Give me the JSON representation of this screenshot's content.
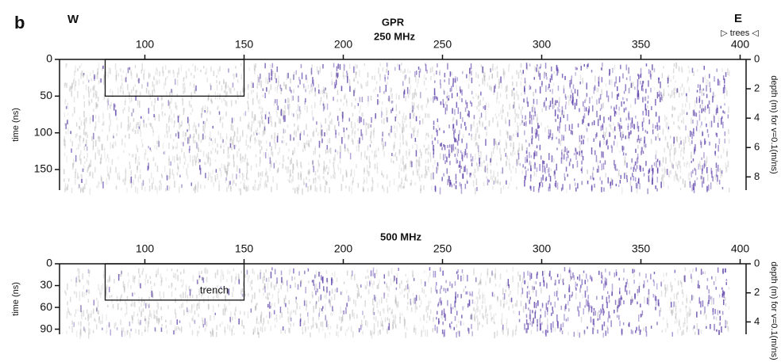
{
  "panel_label": "b",
  "chart_data": [
    {
      "type": "radargram",
      "title": "GPR",
      "subtitle": "250 MHz",
      "annotations": [
        "W",
        "E",
        "▷ trees ◁"
      ],
      "ylabel": "time (ns)",
      "y2label": "depth (m) for v=0.1(m/ns)",
      "xlim": [
        57,
        400
      ],
      "xticks": [
        100,
        150,
        200,
        250,
        300,
        350,
        400
      ],
      "ylim": [
        0,
        178
      ],
      "yticks": [
        0,
        50,
        100,
        150
      ],
      "y2lim": [
        0,
        8.9
      ],
      "y2ticks": [
        0,
        2,
        4,
        6,
        8
      ],
      "box": {
        "x": [
          80,
          150
        ],
        "y": [
          0,
          50
        ]
      },
      "color": "#5b3ea8"
    },
    {
      "type": "radargram",
      "subtitle": "500 MHz",
      "annotations": [
        "trench"
      ],
      "ylabel": "time (ns)",
      "y2label": "depth (m) for v=0.1(m/ns)",
      "xlim": [
        57,
        400
      ],
      "xticks": [
        100,
        150,
        200,
        250,
        300,
        350,
        400
      ],
      "ylim": [
        0,
        97
      ],
      "yticks": [
        0,
        30,
        60,
        90
      ],
      "y2lim": [
        0,
        4.85
      ],
      "y2ticks": [
        0,
        2,
        4
      ],
      "box": {
        "x": [
          80,
          150
        ],
        "y": [
          0,
          50
        ]
      },
      "color": "#5b3ea8"
    }
  ]
}
